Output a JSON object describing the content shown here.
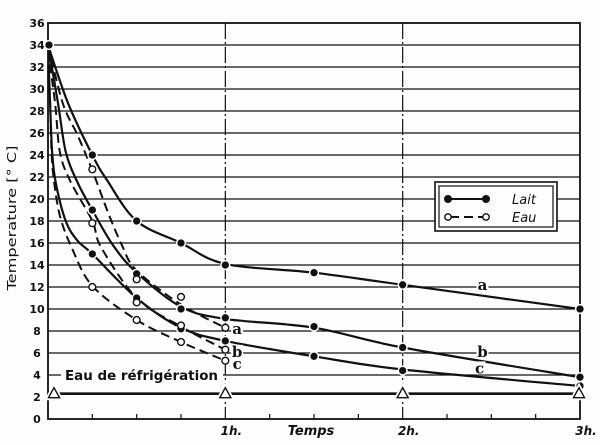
{
  "chart_data": {
    "type": "line",
    "title": "",
    "xlabel": "Temps",
    "ylabel": "Temperature [° C]",
    "x_unit": "minutes",
    "xlim": [
      0,
      180
    ],
    "ylim": [
      0,
      36
    ],
    "yticks": [
      0,
      2,
      4,
      6,
      8,
      10,
      12,
      14,
      16,
      18,
      20,
      22,
      24,
      26,
      28,
      30,
      32,
      34,
      36
    ],
    "xticks": [
      {
        "value": 60,
        "label": "1h."
      },
      {
        "value": 120,
        "label": "2h."
      },
      {
        "value": 180,
        "label": "3h."
      }
    ],
    "minor_xticks": [
      15,
      30,
      45,
      75,
      90,
      105,
      135,
      150,
      165
    ],
    "grid": {
      "horizontal": [
        4,
        6,
        8,
        10,
        12,
        14,
        16,
        18,
        20,
        22,
        24,
        26,
        28,
        30,
        32,
        34
      ],
      "vertical": [
        60,
        120
      ]
    },
    "legend": {
      "position": "upper right",
      "entries": [
        {
          "label": "Lait",
          "line": "solid",
          "marker": "filled-circle"
        },
        {
          "label": "Eau",
          "line": "dashed",
          "marker": "open-circle"
        }
      ]
    },
    "series": [
      {
        "name": "Lait a",
        "group": "Lait",
        "label": "a",
        "line": "solid",
        "marker": "filled-circle",
        "points": {
          "x": [
            0,
            15,
            30,
            45,
            60,
            90,
            120,
            180
          ],
          "y": [
            34,
            24,
            18,
            16,
            14,
            13.3,
            12.2,
            10
          ]
        },
        "curve": {
          "x": [
            0,
            6.8,
            15,
            20,
            30,
            45,
            60,
            90,
            120,
            180
          ],
          "y": [
            34,
            28.7,
            24,
            21.7,
            18,
            16,
            14.1,
            13.3,
            12.2,
            10
          ]
        }
      },
      {
        "name": "Lait b",
        "group": "Lait",
        "label": "b",
        "line": "solid",
        "marker": "filled-circle",
        "points": {
          "x": [
            15,
            30,
            45,
            60,
            90,
            120,
            180
          ],
          "y": [
            19,
            13.2,
            10,
            9.2,
            8.4,
            6.5,
            3.8
          ]
        },
        "curve": {
          "x": [
            0,
            3.4,
            6,
            10,
            15,
            22,
            30,
            45,
            60,
            90,
            120,
            180
          ],
          "y": [
            34,
            28.7,
            24.3,
            21.5,
            19,
            15.8,
            13.3,
            10.2,
            9.1,
            8.3,
            6.5,
            3.8
          ]
        }
      },
      {
        "name": "Lait c",
        "group": "Lait",
        "label": "c",
        "line": "solid",
        "marker": "filled-circle",
        "points": {
          "x": [
            15,
            30,
            45,
            60,
            90,
            120,
            180
          ],
          "y": [
            15,
            11,
            8.2,
            7.1,
            5.7,
            4.4,
            3
          ]
        },
        "curve": {
          "x": [
            0,
            0.7,
            1.4,
            2.6,
            6,
            10,
            15,
            30,
            45,
            60,
            90,
            120,
            180
          ],
          "y": [
            34,
            28.7,
            24.3,
            21.5,
            18,
            16.2,
            15,
            11,
            8.3,
            7.1,
            5.7,
            4.5,
            3
          ]
        }
      },
      {
        "name": "Eau a",
        "group": "Eau",
        "label": "a",
        "line": "dashed",
        "marker": "open-circle",
        "points": {
          "x": [
            15,
            30,
            45,
            60
          ],
          "y": [
            22.7,
            12.7,
            11.1,
            8.3
          ]
        },
        "curve": {
          "x": [
            0,
            5,
            10,
            15,
            20,
            25,
            30,
            45,
            60
          ],
          "y": [
            34,
            28.7,
            25.8,
            22.6,
            19,
            15.8,
            13.5,
            10.4,
            8.3
          ]
        }
      },
      {
        "name": "Eau b",
        "group": "Eau",
        "label": "b",
        "line": "dashed",
        "marker": "open-circle",
        "points": {
          "x": [
            15,
            30,
            45,
            60
          ],
          "y": [
            17.8,
            10.6,
            8.5,
            6.3
          ]
        },
        "curve": {
          "x": [
            0,
            2.4,
            4,
            7.4,
            15,
            18,
            30,
            45,
            60
          ],
          "y": [
            33.5,
            28.7,
            24.3,
            21.7,
            18,
            15.6,
            11,
            8.4,
            6.3
          ]
        }
      },
      {
        "name": "Eau c",
        "group": "Eau",
        "label": "c",
        "line": "dashed",
        "marker": "open-circle",
        "points": {
          "x": [
            15,
            30,
            45,
            60
          ],
          "y": [
            12,
            9,
            7,
            5.3
          ]
        },
        "curve": {
          "x": [
            0,
            0.7,
            1.2,
            2,
            4,
            8,
            15,
            30,
            45,
            60
          ],
          "y": [
            33,
            28.7,
            24.3,
            21.7,
            18.5,
            15.6,
            12.1,
            9,
            7,
            5.3
          ]
        }
      }
    ],
    "reference_line": {
      "label": "Eau de réfrigération",
      "value": 2.3,
      "marker": "open-triangle",
      "marker_x": [
        0,
        60,
        120,
        180
      ]
    },
    "annotations": [
      {
        "text": "a",
        "series": "Lait a",
        "x": 147,
        "y": 12.2
      },
      {
        "text": "b",
        "series": "Lait b",
        "x": 147,
        "y": 6.1
      },
      {
        "text": "c",
        "series": "Lait c",
        "x": 146,
        "y": 4.6
      },
      {
        "text": "a",
        "series": "Eau a",
        "x": 64,
        "y": 8.2
      },
      {
        "text": "b",
        "series": "Eau b",
        "x": 64,
        "y": 6.1
      },
      {
        "text": "c",
        "series": "Eau c",
        "x": 64,
        "y": 5.0
      }
    ],
    "colors": {
      "ink": "#111111",
      "background": "#fdfdfd"
    }
  }
}
